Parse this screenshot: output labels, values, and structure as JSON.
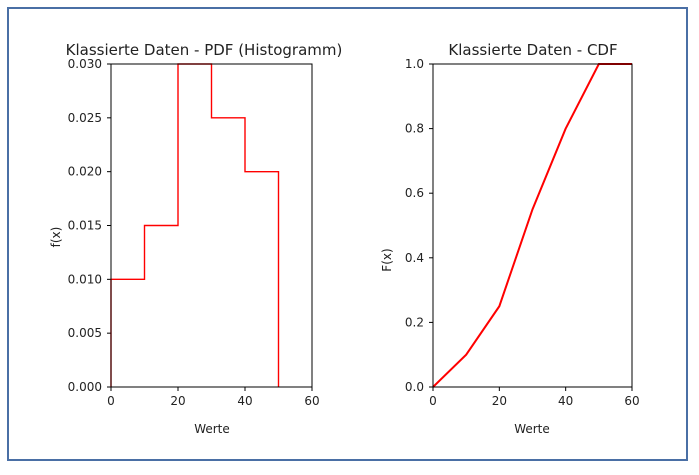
{
  "chart_data": [
    {
      "type": "line",
      "subtype": "histogram-step",
      "title": "Klassierte Daten - PDF (Histogramm)",
      "xlabel": "Werte",
      "ylabel": "f(x)",
      "xlim": [
        0,
        60
      ],
      "ylim": [
        0,
        0.03
      ],
      "xticks": [
        0,
        20,
        40,
        60
      ],
      "yticks": [
        "0.000",
        "0.005",
        "0.010",
        "0.015",
        "0.020",
        "0.025",
        "0.030"
      ],
      "grid": false,
      "color": "#ff0000",
      "series": [
        {
          "x": [
            0,
            0,
            10,
            10,
            20,
            20,
            30,
            30,
            40,
            40,
            50,
            50
          ],
          "y": [
            0,
            0.01,
            0.01,
            0.015,
            0.015,
            0.03,
            0.03,
            0.025,
            0.025,
            0.02,
            0.02,
            0
          ]
        }
      ]
    },
    {
      "type": "line",
      "title": "Klassierte Daten - CDF",
      "xlabel": "Werte",
      "ylabel": "F(x)",
      "xlim": [
        0,
        60
      ],
      "ylim": [
        0,
        1.0
      ],
      "xticks": [
        0,
        20,
        40,
        60
      ],
      "yticks": [
        "0.0",
        "0.2",
        "0.4",
        "0.6",
        "0.8",
        "1.0"
      ],
      "grid": false,
      "color": "#ff0000",
      "series": [
        {
          "x": [
            0,
            10,
            20,
            30,
            40,
            50,
            60
          ],
          "y": [
            0,
            0.1,
            0.25,
            0.55,
            0.8,
            1.0,
            1.0
          ]
        }
      ]
    }
  ]
}
